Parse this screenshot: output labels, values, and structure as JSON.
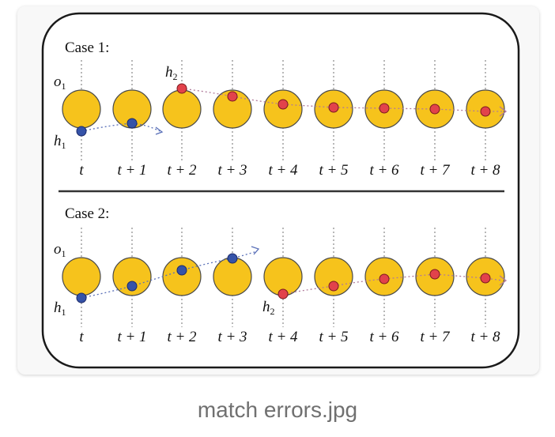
{
  "caption": "match errors.jpg",
  "colors": {
    "frame": "#1a1a1a",
    "background": "#ffffff",
    "object_fill": "#f6c31c",
    "object_stroke": "#4a4a4a",
    "blue_hypothesis": "#3553a8",
    "red_hypothesis": "#e2424b",
    "blue_track": "#5a70b8",
    "red_track": "#b07a9a",
    "guide": "#888888"
  },
  "cases": [
    {
      "label": "Case 1:",
      "object_label": "o",
      "object_subscript": "1",
      "h1_label": "h",
      "h1_subscript": "1",
      "h2_label": "h",
      "h2_subscript": "2",
      "time_labels": [
        "t",
        "t + 1",
        "t + 2",
        "t + 3",
        "t + 4",
        "t + 5",
        "t + 6",
        "t + 7",
        "t + 8"
      ]
    },
    {
      "label": "Case 2:",
      "object_label": "o",
      "object_subscript": "1",
      "h1_label": "h",
      "h1_subscript": "1",
      "h2_label": "h",
      "h2_subscript": "2",
      "time_labels": [
        "t",
        "t + 1",
        "t + 2",
        "t + 3",
        "t + 4",
        "t + 5",
        "t + 6",
        "t + 7",
        "t + 8"
      ]
    }
  ]
}
